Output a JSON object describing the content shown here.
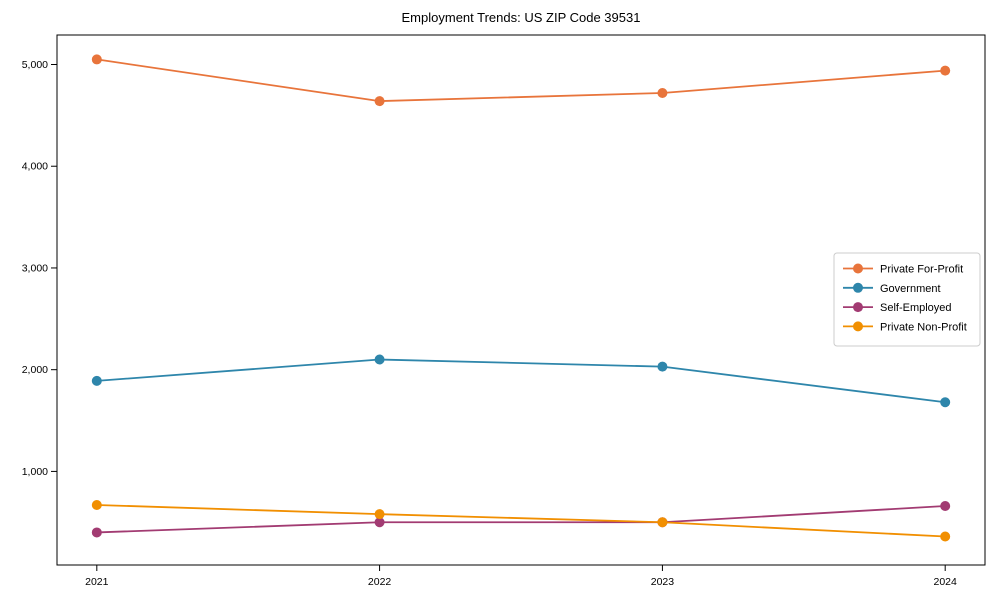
{
  "figure": {
    "background": "#ffffff",
    "axes_edge_color": "#000000",
    "text_color": "#000000"
  },
  "chart_data": {
    "type": "line",
    "title": "Employment Trends: US ZIP Code 39531",
    "xlabel": "",
    "ylabel": "",
    "categories": [
      "2021",
      "2022",
      "2023",
      "2024"
    ],
    "series": [
      {
        "name": "Private For-Profit",
        "color": "#E8743B",
        "values": [
          5050,
          4640,
          4720,
          4940
        ]
      },
      {
        "name": "Government",
        "color": "#2E86AB",
        "values": [
          1890,
          2100,
          2030,
          1680
        ]
      },
      {
        "name": "Self-Employed",
        "color": "#A23B72",
        "values": [
          400,
          500,
          500,
          660
        ]
      },
      {
        "name": "Private Non-Profit",
        "color": "#F18F01",
        "values": [
          670,
          580,
          500,
          360
        ]
      }
    ],
    "yticks": [
      1000,
      2000,
      3000,
      4000,
      5000
    ],
    "ytick_labels": [
      "1,000",
      "2,000",
      "3,000",
      "4,000",
      "5,000"
    ],
    "ylim": [
      80,
      5290
    ],
    "grid": false,
    "marker": "circle",
    "legend_position": "center right"
  }
}
